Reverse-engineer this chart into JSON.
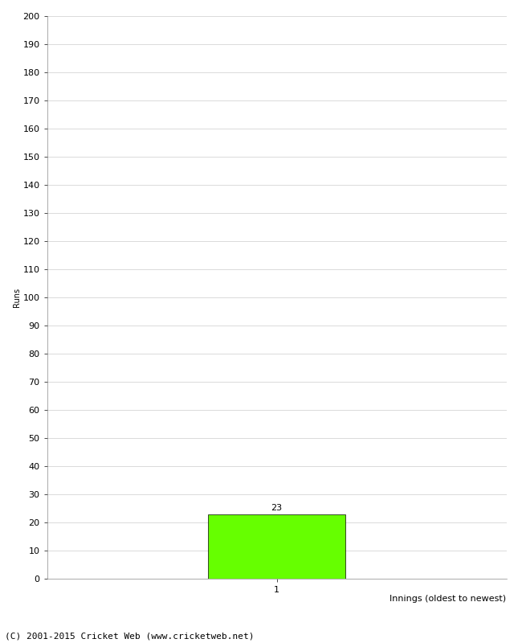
{
  "xlabel": "Innings (oldest to newest)",
  "ylabel": "Runs",
  "bar_values": [
    23
  ],
  "bar_positions": [
    1
  ],
  "bar_color": "#66ff00",
  "bar_edgecolor": "#000000",
  "bar_width": 0.6,
  "ylim": [
    0,
    200
  ],
  "ytick_step": 10,
  "xtick_labels": [
    "1"
  ],
  "background_color": "#ffffff",
  "grid_color": "#cccccc",
  "footer_text": "(C) 2001-2015 Cricket Web (www.cricketweb.net)",
  "value_label_fontsize": 8,
  "axis_label_fontsize": 8,
  "tick_label_fontsize": 8,
  "footer_fontsize": 8,
  "ylabel_fontsize": 7
}
